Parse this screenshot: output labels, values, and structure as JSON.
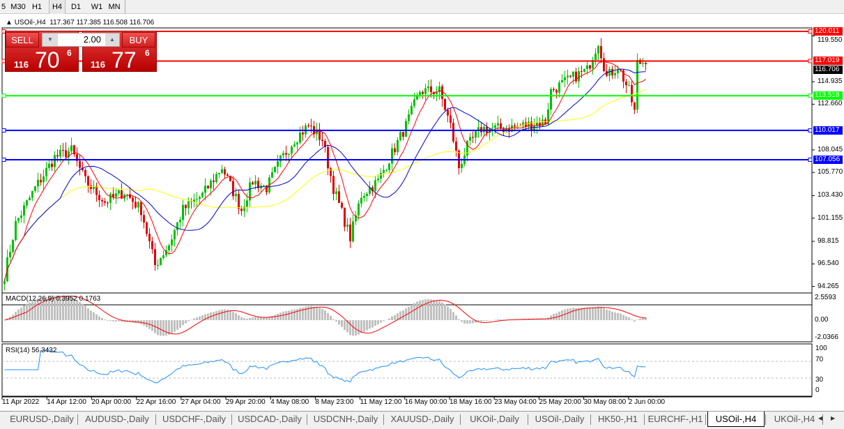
{
  "timeframes": [
    "5",
    "M30",
    "H1",
    "H4",
    "D1",
    "W1",
    "MN"
  ],
  "active_timeframe": "H4",
  "chart_header": {
    "symbol": "USOil-,H4",
    "ohlc": "117.367 117.385 116.508 116.706"
  },
  "trade_panel": {
    "sell_label": "SELL",
    "buy_label": "BUY",
    "lot": "2.00",
    "sell_prefix": "116",
    "sell_big": "70",
    "sell_sup": "6",
    "buy_prefix": "116",
    "buy_big": "77",
    "buy_sup": "6"
  },
  "price_axis": {
    "ticks": [
      "119.550",
      "114.935",
      "112.660",
      "108.045",
      "105.770",
      "103.430",
      "101.155",
      "98.815",
      "96.540",
      "94.265"
    ],
    "ticks_values": [
      119.55,
      114.935,
      112.66,
      108.045,
      105.77,
      103.43,
      101.155,
      98.815,
      96.54,
      94.265
    ],
    "current_price": "116.706"
  },
  "hlines": [
    {
      "label": "120.011",
      "value": 120.011,
      "color": "#ff0000"
    },
    {
      "label": "117.019",
      "value": 117.019,
      "color": "#ff0000"
    },
    {
      "label": "113.518",
      "value": 113.518,
      "color": "#00ff00"
    },
    {
      "label": "110.017",
      "value": 110.017,
      "color": "#0000ff"
    },
    {
      "label": "107.056",
      "value": 107.056,
      "color": "#0000ff"
    }
  ],
  "macd": {
    "label": "MACD(12,26,9) 0.3952 0.1763",
    "ticks": [
      "2.5593",
      "0.00",
      "-2.0366"
    ]
  },
  "rsi": {
    "label": "RSI(14) 56.3432",
    "ticks": [
      "100",
      "70",
      "30",
      "0"
    ]
  },
  "time_axis": [
    "11 Apr 2022",
    "14 Apr 12:00",
    "20 Apr 00:00",
    "22 Apr 16:00",
    "27 Apr 04:00",
    "29 Apr 20:00",
    "4 May 08:00",
    "8 May 23:00",
    "11 May 12:00",
    "16 May 00:00",
    "18 May 16:00",
    "23 May 04:00",
    "25 May 20:00",
    "30 May 08:00",
    "2 Jun 00:00"
  ],
  "chart_data": {
    "type": "candlestick",
    "approx_close_path": [
      [
        0,
        95.4
      ],
      [
        4,
        100.6
      ],
      [
        11,
        104.2
      ],
      [
        18,
        107.3
      ],
      [
        24,
        108
      ],
      [
        29,
        104.9
      ],
      [
        36,
        102.8
      ],
      [
        43,
        103.8
      ],
      [
        49,
        102
      ],
      [
        54,
        96.4
      ],
      [
        59,
        98.5
      ],
      [
        64,
        102
      ],
      [
        71,
        103.5
      ],
      [
        78,
        106.3
      ],
      [
        85,
        102
      ],
      [
        89,
        104.9
      ],
      [
        94,
        104.2
      ],
      [
        99,
        107
      ],
      [
        104,
        109.1
      ],
      [
        109,
        110.5
      ],
      [
        114,
        109.1
      ],
      [
        118,
        104.2
      ],
      [
        124,
        99.2
      ],
      [
        128,
        103.5
      ],
      [
        134,
        104.9
      ],
      [
        139,
        107.7
      ],
      [
        144,
        110.5
      ],
      [
        149,
        114
      ],
      [
        156,
        114
      ],
      [
        160,
        110.5
      ],
      [
        163,
        106.3
      ],
      [
        166,
        108.4
      ],
      [
        171,
        110.2
      ],
      [
        179,
        110.2
      ],
      [
        186,
        110.5
      ],
      [
        194,
        110.9
      ],
      [
        196,
        114
      ],
      [
        204,
        115.4
      ],
      [
        209,
        116.1
      ],
      [
        213,
        119
      ],
      [
        216,
        115.4
      ],
      [
        220,
        116.5
      ],
      [
        224,
        114
      ],
      [
        226,
        111.9
      ],
      [
        227,
        116.8
      ],
      [
        230,
        117
      ]
    ],
    "colors": {
      "up": "#00c000",
      "down": "#e00000",
      "ma_fast": "#ff0000",
      "ma_mid": "#0000cc",
      "ma_slow": "#ffff00"
    }
  },
  "tabs": [
    "EURUSD-,Daily",
    "AUDUSD-,Daily",
    "USDCHF-,Daily",
    "USDCAD-,Daily",
    "USDCNH-,Daily",
    "XAUUSD-,Daily",
    "UKOil-,Daily",
    "USOil-,Daily",
    "HK50-,H1",
    "EURCHF-,H1",
    "USOil-,H4",
    "UKOil-,H4"
  ],
  "active_tab": "USOil-,H4"
}
